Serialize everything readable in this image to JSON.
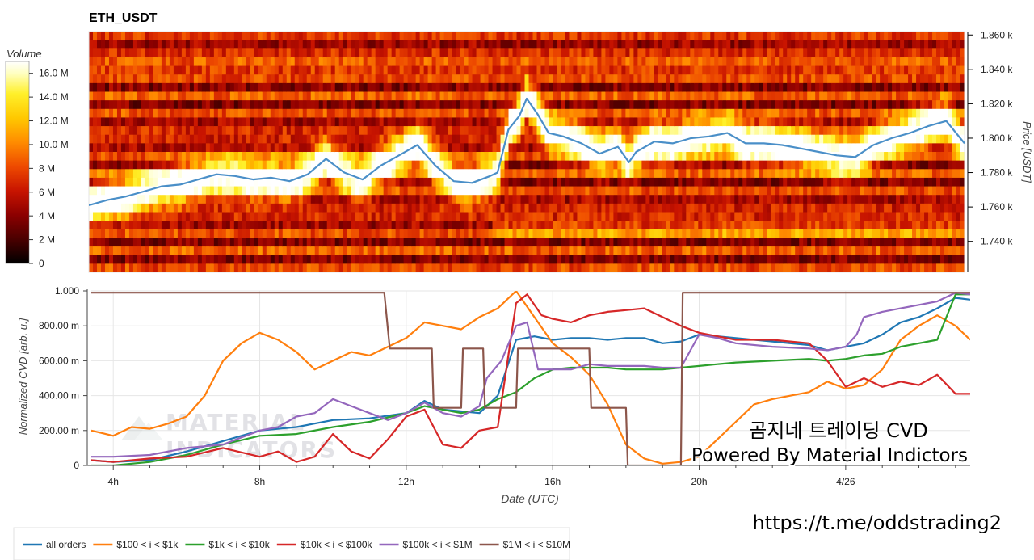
{
  "chart_data": [
    {
      "type": "heatmap",
      "title": "ETH_USDT",
      "ylabel": "Price [USDT]",
      "ylim": [
        1722,
        1862
      ],
      "yticks": [
        {
          "value": 1860,
          "label": "1.860 k"
        },
        {
          "value": 1840,
          "label": "1.840 k"
        },
        {
          "value": 1820,
          "label": "1.820 k"
        },
        {
          "value": 1800,
          "label": "1.800 k"
        },
        {
          "value": 1780,
          "label": "1.780 k"
        },
        {
          "value": 1760,
          "label": "1.760 k"
        },
        {
          "value": 1740,
          "label": "1.740 k"
        }
      ],
      "colorbar": {
        "label": "Volume",
        "range": [
          0,
          17000000
        ],
        "ticks": [
          {
            "value": 16000000,
            "label": "16.0 M"
          },
          {
            "value": 14000000,
            "label": "14.0 M"
          },
          {
            "value": 12000000,
            "label": "12.0 M"
          },
          {
            "value": 10000000,
            "label": "10.0 M"
          },
          {
            "value": 8000000,
            "label": "8 M"
          },
          {
            "value": 6000000,
            "label": "6 M"
          },
          {
            "value": 4000000,
            "label": "4 M"
          },
          {
            "value": 2000000,
            "label": "2 M"
          },
          {
            "value": 0,
            "label": "0"
          }
        ],
        "colors": [
          "#000000",
          "#4a0000",
          "#8c0000",
          "#c81400",
          "#ee4a00",
          "#ff8c00",
          "#ffc800",
          "#fff02a",
          "#ffffc0",
          "#ffffff"
        ]
      },
      "price_line": {
        "color": "#4a8fc8",
        "x": [
          3.4,
          3.9,
          4.4,
          4.9,
          5.4,
          5.9,
          6.4,
          6.9,
          7.4,
          7.9,
          8.4,
          8.9,
          9.4,
          9.9,
          10.4,
          10.9,
          11.4,
          11.9,
          12.4,
          12.9,
          13.4,
          13.9,
          14.4,
          14.6,
          14.9,
          15.2,
          15.4,
          15.7,
          16.0,
          16.4,
          16.9,
          17.4,
          17.9,
          18.2,
          18.4,
          18.9,
          19.4,
          19.9,
          20.4,
          20.9,
          21.4,
          21.9,
          22.4,
          22.9,
          23.4,
          23.9,
          24.4,
          24.9,
          25.4,
          25.9,
          26.4,
          26.9,
          27.4
        ],
        "y": [
          1761,
          1764,
          1766,
          1769,
          1772,
          1773,
          1776,
          1779,
          1778,
          1776,
          1777,
          1775,
          1779,
          1788,
          1780,
          1776,
          1784,
          1790,
          1796,
          1784,
          1775,
          1774,
          1778,
          1780,
          1805,
          1813,
          1823,
          1814,
          1803,
          1801,
          1797,
          1791,
          1795,
          1786,
          1792,
          1798,
          1797,
          1800,
          1801,
          1803,
          1797,
          1797,
          1796,
          1794,
          1792,
          1790,
          1789,
          1796,
          1800,
          1803,
          1807,
          1810,
          1797
        ]
      }
    },
    {
      "type": "line",
      "ylabel": "Normalized CVD [arb. u.]",
      "xlabel": "Date (UTC)",
      "ylim": [
        0,
        1
      ],
      "xlim": [
        3.4,
        27.4
      ],
      "xticks": [
        {
          "value": 4,
          "label": "4h"
        },
        {
          "value": 8,
          "label": "8h"
        },
        {
          "value": 12,
          "label": "12h"
        },
        {
          "value": 16,
          "label": "16h"
        },
        {
          "value": 20,
          "label": "20h"
        },
        {
          "value": 24,
          "label": "4/26"
        }
      ],
      "yticks": [
        {
          "value": 0,
          "label": "0"
        },
        {
          "value": 0.2,
          "label": "200.00 m"
        },
        {
          "value": 0.4,
          "label": "400.00 m"
        },
        {
          "value": 0.6,
          "label": "600.00 m"
        },
        {
          "value": 0.8,
          "label": "800.00 m"
        },
        {
          "value": 1.0,
          "label": "1.000"
        }
      ],
      "series": [
        {
          "name": "all orders",
          "color": "#1f77b4",
          "x": [
            3.4,
            4,
            5,
            6,
            7,
            8,
            9,
            10,
            11,
            12,
            12.5,
            13,
            13.5,
            14,
            14.5,
            15,
            15.5,
            16,
            16.5,
            17,
            17.5,
            18,
            18.5,
            19,
            19.5,
            20,
            20.5,
            21,
            22,
            23,
            23.5,
            24,
            24.5,
            25,
            25.5,
            26,
            26.5,
            27,
            27.4
          ],
          "y": [
            0.03,
            0.02,
            0.03,
            0.08,
            0.14,
            0.2,
            0.22,
            0.26,
            0.27,
            0.3,
            0.37,
            0.32,
            0.31,
            0.3,
            0.4,
            0.72,
            0.74,
            0.72,
            0.73,
            0.73,
            0.72,
            0.73,
            0.73,
            0.7,
            0.71,
            0.75,
            0.74,
            0.73,
            0.71,
            0.69,
            0.66,
            0.68,
            0.7,
            0.75,
            0.82,
            0.85,
            0.9,
            0.96,
            0.95
          ]
        },
        {
          "name": "$100 < i < $1k",
          "color": "#ff7f0e",
          "x": [
            3.4,
            4,
            4.5,
            5,
            5.5,
            6,
            6.5,
            7,
            7.5,
            8,
            8.5,
            9,
            9.5,
            10,
            10.5,
            11,
            11.5,
            12,
            12.5,
            13,
            13.5,
            14,
            14.5,
            15,
            15.5,
            16,
            16.5,
            17,
            17.5,
            18,
            18.5,
            19,
            19.5,
            20,
            20.5,
            21,
            21.5,
            22,
            22.5,
            23,
            23.5,
            24,
            24.5,
            25,
            25.5,
            26,
            26.5,
            27,
            27.4
          ],
          "y": [
            0.2,
            0.17,
            0.22,
            0.21,
            0.24,
            0.28,
            0.4,
            0.6,
            0.7,
            0.76,
            0.72,
            0.65,
            0.55,
            0.6,
            0.65,
            0.63,
            0.68,
            0.73,
            0.82,
            0.8,
            0.78,
            0.85,
            0.9,
            1.0,
            0.85,
            0.7,
            0.62,
            0.52,
            0.35,
            0.12,
            0.04,
            0.01,
            0.02,
            0.05,
            0.15,
            0.25,
            0.35,
            0.38,
            0.4,
            0.42,
            0.48,
            0.44,
            0.46,
            0.55,
            0.72,
            0.8,
            0.86,
            0.8,
            0.72
          ]
        },
        {
          "name": "$1k < i < $10k",
          "color": "#2ca02c",
          "x": [
            3.4,
            4,
            5,
            6,
            7,
            8,
            9,
            10,
            11,
            12,
            12.5,
            13,
            13.5,
            14,
            14.5,
            15,
            15.5,
            16,
            16.5,
            17,
            17.5,
            18,
            18.5,
            19,
            19.5,
            20,
            20.5,
            21,
            22,
            23,
            23.5,
            24,
            24.5,
            25,
            25.5,
            26,
            26.5,
            27,
            27.4
          ],
          "y": [
            0.0,
            0.0,
            0.02,
            0.06,
            0.12,
            0.17,
            0.18,
            0.22,
            0.25,
            0.3,
            0.34,
            0.32,
            0.3,
            0.32,
            0.38,
            0.42,
            0.5,
            0.55,
            0.56,
            0.56,
            0.56,
            0.55,
            0.55,
            0.55,
            0.56,
            0.57,
            0.58,
            0.59,
            0.6,
            0.61,
            0.6,
            0.61,
            0.63,
            0.64,
            0.68,
            0.7,
            0.72,
            0.98,
            0.98
          ]
        },
        {
          "name": "$10k < i < $100k",
          "color": "#d62728",
          "x": [
            3.4,
            4,
            5,
            6,
            7,
            8,
            8.5,
            9,
            9.5,
            10,
            10.5,
            11,
            11.5,
            12,
            12.5,
            13,
            13.5,
            14,
            14.5,
            15,
            15.3,
            15.7,
            16,
            16.5,
            17,
            17.5,
            18,
            18.5,
            19,
            19.5,
            20,
            20.5,
            21,
            22,
            23,
            23.5,
            24,
            24.5,
            25,
            25.5,
            26,
            26.5,
            27,
            27.4
          ],
          "y": [
            0.03,
            0.02,
            0.04,
            0.05,
            0.1,
            0.05,
            0.08,
            0.02,
            0.05,
            0.18,
            0.08,
            0.04,
            0.15,
            0.28,
            0.32,
            0.12,
            0.1,
            0.2,
            0.22,
            0.93,
            0.98,
            0.86,
            0.84,
            0.82,
            0.86,
            0.88,
            0.89,
            0.9,
            0.85,
            0.8,
            0.76,
            0.74,
            0.72,
            0.72,
            0.7,
            0.6,
            0.45,
            0.5,
            0.45,
            0.48,
            0.46,
            0.52,
            0.41,
            0.41
          ]
        },
        {
          "name": "$100k < i < $1M",
          "color": "#9467bd",
          "x": [
            3.4,
            4,
            5,
            6,
            7,
            7.5,
            8,
            8.5,
            9,
            9.5,
            10,
            10.5,
            11,
            11.5,
            12,
            12.5,
            13,
            13.5,
            14,
            14.2,
            14.6,
            15,
            15.3,
            15.6,
            16,
            16.5,
            17,
            17.5,
            18,
            18.5,
            19,
            19.5,
            20,
            20.5,
            21,
            22,
            23,
            23.5,
            24,
            24.3,
            24.5,
            25,
            25.5,
            26,
            26.5,
            27,
            27.4
          ],
          "y": [
            0.05,
            0.05,
            0.06,
            0.1,
            0.12,
            0.16,
            0.2,
            0.22,
            0.28,
            0.3,
            0.38,
            0.34,
            0.3,
            0.26,
            0.3,
            0.36,
            0.3,
            0.28,
            0.34,
            0.5,
            0.6,
            0.8,
            0.82,
            0.55,
            0.55,
            0.55,
            0.58,
            0.57,
            0.57,
            0.57,
            0.56,
            0.56,
            0.75,
            0.73,
            0.7,
            0.68,
            0.67,
            0.66,
            0.68,
            0.75,
            0.85,
            0.88,
            0.9,
            0.92,
            0.94,
            0.99,
            0.98
          ]
        },
        {
          "name": "$1M < i < $10M",
          "color": "#8c564b",
          "x": [
            3.4,
            11.4,
            11.55,
            12.7,
            12.75,
            13.5,
            13.55,
            14.1,
            14.15,
            15.0,
            15.05,
            15.95,
            16.0,
            17.0,
            17.05,
            18.0,
            18.05,
            19.5,
            19.55,
            19.7,
            27.4
          ],
          "y": [
            0.99,
            0.99,
            0.67,
            0.67,
            0.33,
            0.33,
            0.67,
            0.67,
            0.33,
            0.33,
            0.67,
            0.67,
            0.67,
            0.67,
            0.33,
            0.33,
            0.0,
            0.0,
            0.99,
            0.99,
            0.99
          ]
        }
      ]
    }
  ],
  "watermark": {
    "line1": "MATERIAL",
    "line2": "INDICATORS"
  },
  "overlay": {
    "line1": "곰지네 트레이딩 CVD",
    "line2": "Powered By Material Indictors"
  },
  "footer": {
    "url": "https://t.me/oddstrading2"
  }
}
